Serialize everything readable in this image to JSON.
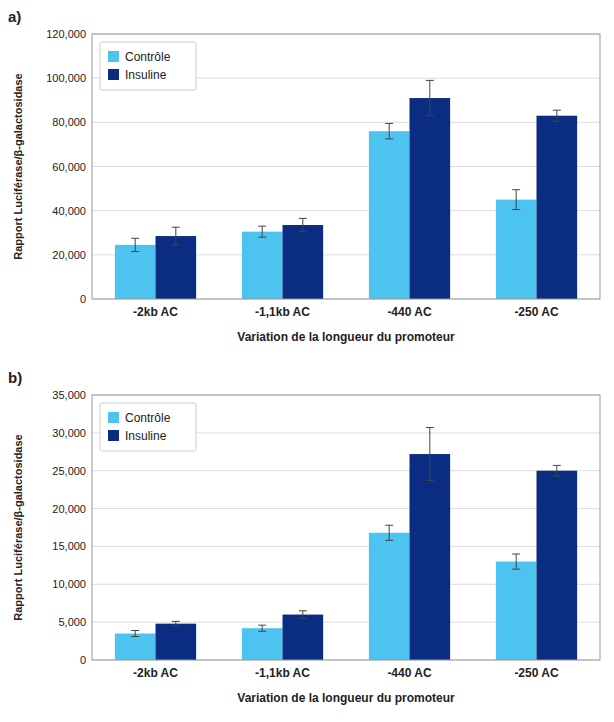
{
  "chart_data": [
    {
      "type": "bar",
      "title": "a)",
      "categories": [
        "-2kb AC",
        "-1,1kb AC",
        "-440 AC",
        "-250 AC"
      ],
      "series": [
        {
          "name": "Contrôle",
          "color": "#4dc3f0",
          "values": [
            24500,
            30500,
            76000,
            45000
          ],
          "errors": [
            3000,
            2500,
            3500,
            4500
          ]
        },
        {
          "name": "Insuline",
          "color": "#0a2d82",
          "values": [
            28500,
            33500,
            91000,
            83000
          ],
          "errors": [
            4000,
            3000,
            8000,
            2500
          ]
        }
      ],
      "ylim": [
        0,
        120000
      ],
      "yticks": [
        0,
        {
          "value": 20000,
          "label": "20,000"
        },
        {
          "value": 40000,
          "label": "40,000"
        },
        {
          "value": 60000,
          "label": "60,000"
        },
        {
          "value": 80000,
          "label": "80,000"
        },
        {
          "value": 100000,
          "label": "100,000"
        },
        {
          "value": 120000,
          "label": "120,000"
        }
      ],
      "ylabel": "Rapport Luciférase/β-galactosidase",
      "xlabel": "Variation de la longueur du promoteur",
      "grid": true,
      "legend": "upper left"
    },
    {
      "type": "bar",
      "title": "b)",
      "categories": [
        "-2kb AC",
        "-1,1kb AC",
        "-440 AC",
        "-250 AC"
      ],
      "series": [
        {
          "name": "Contrôle",
          "color": "#4dc3f0",
          "values": [
            3500,
            4200,
            16800,
            13000
          ],
          "errors": [
            400,
            400,
            1000,
            1000
          ]
        },
        {
          "name": "Insuline",
          "color": "#0a2d82",
          "values": [
            4800,
            6000,
            27200,
            25000
          ],
          "errors": [
            300,
            500,
            3500,
            700
          ]
        }
      ],
      "ylim": [
        0,
        35000
      ],
      "yticks": [
        0,
        {
          "value": 5000,
          "label": "5,000"
        },
        {
          "value": 10000,
          "label": "10,000"
        },
        {
          "value": 15000,
          "label": "15,000"
        },
        {
          "value": 20000,
          "label": "20,000"
        },
        {
          "value": 25000,
          "label": "25,000"
        },
        {
          "value": 30000,
          "label": "30,000"
        },
        {
          "value": 35000,
          "label": "35,000"
        }
      ],
      "ylabel": "Rapport Luciférase/β-galactosidase",
      "xlabel": "Variation de la longueur du promoteur",
      "grid": true,
      "legend": "upper left"
    }
  ]
}
